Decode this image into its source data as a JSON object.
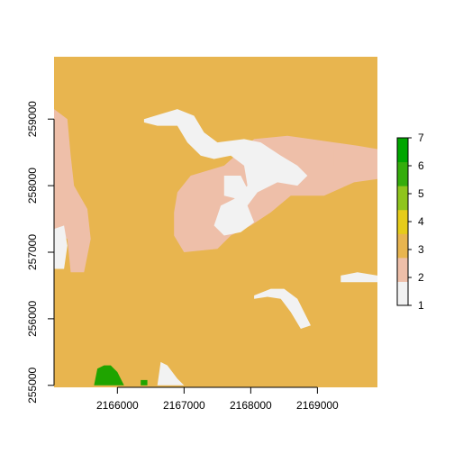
{
  "chart_data": {
    "type": "heatmap",
    "title": "",
    "xlabel": "",
    "ylabel": "",
    "xlim": [
      2165050,
      2169900
    ],
    "ylim": [
      254970,
      259950
    ],
    "x_ticks": [
      2166000,
      2167000,
      2168000,
      2169000
    ],
    "x_tick_labels": [
      "2166000",
      "2167000",
      "2168000",
      "2169000"
    ],
    "y_ticks": [
      255000,
      256000,
      257000,
      258000,
      259000
    ],
    "y_tick_labels": [
      "255000",
      "256000",
      "257000",
      "258000",
      "259000"
    ],
    "legend": {
      "placement": "right",
      "min": 1,
      "max": 7,
      "ticks": [
        1,
        2,
        3,
        4,
        5,
        6,
        7
      ],
      "tick_labels": [
        "1",
        "2",
        "3",
        "4",
        "5",
        "6",
        "7"
      ],
      "colors": [
        "#f2f2f2",
        "#eebfa9",
        "#e8b54f",
        "#e6cc1a",
        "#8fc51d",
        "#35ad0c",
        "#00a600"
      ]
    },
    "background_value": 3,
    "value_colors": {
      "1": "#f2f2f2",
      "2": "#eebfa9",
      "3": "#e8b54f",
      "6": "#1fa400"
    },
    "regions": [
      {
        "value": 2,
        "label": "left-strip",
        "polygon": [
          [
            2165050,
            259150
          ],
          [
            2165250,
            259000
          ],
          [
            2165300,
            258450
          ],
          [
            2165350,
            258000
          ],
          [
            2165550,
            257650
          ],
          [
            2165600,
            257200
          ],
          [
            2165500,
            256700
          ],
          [
            2165300,
            256700
          ],
          [
            2165250,
            257200
          ],
          [
            2165050,
            257300
          ]
        ]
      },
      {
        "value": 1,
        "label": "left-edge-patch",
        "polygon": [
          [
            2165050,
            257350
          ],
          [
            2165200,
            257400
          ],
          [
            2165250,
            257100
          ],
          [
            2165200,
            256750
          ],
          [
            2165050,
            256750
          ]
        ]
      },
      {
        "value": 2,
        "label": "center-band",
        "polygon": [
          [
            2168050,
            258700
          ],
          [
            2168550,
            258750
          ],
          [
            2168900,
            258700
          ],
          [
            2169250,
            258650
          ],
          [
            2169600,
            258600
          ],
          [
            2169900,
            258550
          ],
          [
            2169900,
            258100
          ],
          [
            2169550,
            258050
          ],
          [
            2169100,
            257850
          ],
          [
            2168600,
            257850
          ],
          [
            2168300,
            257600
          ],
          [
            2168000,
            257400
          ],
          [
            2167700,
            257250
          ],
          [
            2167500,
            257050
          ],
          [
            2167000,
            257000
          ],
          [
            2166850,
            257250
          ],
          [
            2166850,
            257600
          ],
          [
            2166900,
            257900
          ],
          [
            2167100,
            258150
          ],
          [
            2167600,
            258300
          ]
        ]
      },
      {
        "value": 2,
        "label": "right-band",
        "polygon": [
          [
            2169250,
            258550
          ],
          [
            2169900,
            258550
          ],
          [
            2169900,
            258150
          ],
          [
            2169550,
            258150
          ],
          [
            2169250,
            258300
          ]
        ]
      },
      {
        "value": 1,
        "label": "center-white-curve",
        "polygon": [
          [
            2166400,
            259000
          ],
          [
            2166900,
            259150
          ],
          [
            2167150,
            259050
          ],
          [
            2167300,
            258800
          ],
          [
            2167500,
            258650
          ],
          [
            2167900,
            258700
          ],
          [
            2168150,
            258650
          ],
          [
            2168450,
            258450
          ],
          [
            2168700,
            258300
          ],
          [
            2168850,
            258150
          ],
          [
            2168700,
            258000
          ],
          [
            2168400,
            258050
          ],
          [
            2168100,
            257900
          ],
          [
            2167950,
            257700
          ],
          [
            2168050,
            257450
          ],
          [
            2167850,
            257300
          ],
          [
            2167600,
            257250
          ],
          [
            2167450,
            257400
          ],
          [
            2167550,
            257700
          ],
          [
            2167750,
            257800
          ],
          [
            2167950,
            258000
          ],
          [
            2167900,
            258300
          ],
          [
            2167700,
            258450
          ],
          [
            2167450,
            258400
          ],
          [
            2167250,
            258450
          ],
          [
            2167050,
            258650
          ],
          [
            2166900,
            258900
          ],
          [
            2166600,
            258900
          ],
          [
            2166400,
            258950
          ]
        ]
      },
      {
        "value": 1,
        "label": "center-inner-pocket",
        "polygon": [
          [
            2167600,
            258150
          ],
          [
            2167850,
            258150
          ],
          [
            2167950,
            257950
          ],
          [
            2167800,
            257800
          ],
          [
            2167600,
            257850
          ]
        ]
      },
      {
        "value": 1,
        "label": "lower-white-arc",
        "polygon": [
          [
            2168050,
            256350
          ],
          [
            2168300,
            256450
          ],
          [
            2168500,
            256450
          ],
          [
            2168700,
            256300
          ],
          [
            2168850,
            256000
          ],
          [
            2168900,
            255900
          ],
          [
            2168750,
            255850
          ],
          [
            2168600,
            256100
          ],
          [
            2168450,
            256300
          ],
          [
            2168250,
            256330
          ],
          [
            2168050,
            256300
          ]
        ]
      },
      {
        "value": 1,
        "label": "right-white-patch",
        "polygon": [
          [
            2169350,
            256650
          ],
          [
            2169600,
            256700
          ],
          [
            2169900,
            256650
          ],
          [
            2169900,
            256550
          ],
          [
            2169550,
            256550
          ],
          [
            2169350,
            256550
          ]
        ]
      },
      {
        "value": 1,
        "label": "bottom-white-spike",
        "polygon": [
          [
            2166600,
            255000
          ],
          [
            2166650,
            255350
          ],
          [
            2166750,
            255300
          ],
          [
            2166900,
            255100
          ],
          [
            2167000,
            255000
          ]
        ]
      },
      {
        "value": 6,
        "label": "bottom-green-patch",
        "polygon": [
          [
            2165650,
            255000
          ],
          [
            2165700,
            255250
          ],
          [
            2165800,
            255300
          ],
          [
            2165900,
            255300
          ],
          [
            2166000,
            255200
          ],
          [
            2166050,
            255100
          ],
          [
            2166100,
            255000
          ]
        ]
      },
      {
        "value": 6,
        "label": "bottom-green-dot",
        "polygon": [
          [
            2166350,
            255000
          ],
          [
            2166350,
            255080
          ],
          [
            2166450,
            255080
          ],
          [
            2166450,
            255000
          ]
        ]
      }
    ]
  }
}
